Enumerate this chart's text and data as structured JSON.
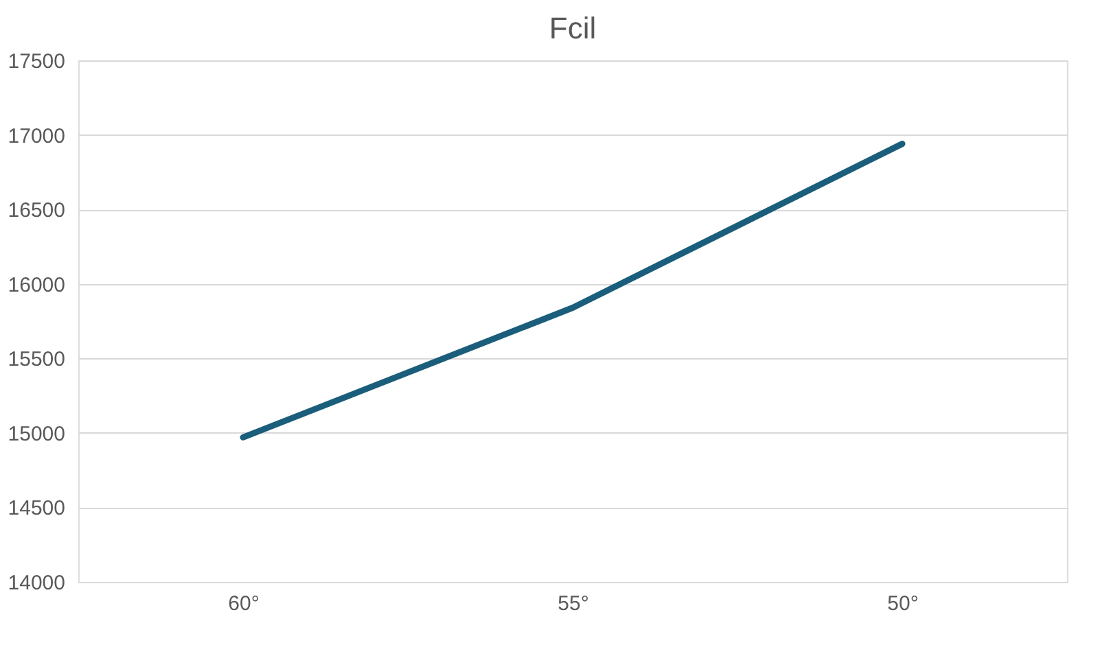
{
  "chart_data": {
    "type": "line",
    "title": "Fcil",
    "categories": [
      "60°",
      "55°",
      "50°"
    ],
    "series": [
      {
        "color": "#1b5e7b",
        "values": [
          14970,
          15840,
          16940
        ]
      }
    ],
    "ylim": [
      14000,
      17500
    ],
    "yticks": [
      14000,
      14500,
      15000,
      15500,
      16000,
      16500,
      17000,
      17500
    ],
    "grid": "y",
    "legend": false,
    "marker": "none",
    "line_style": "solid"
  }
}
